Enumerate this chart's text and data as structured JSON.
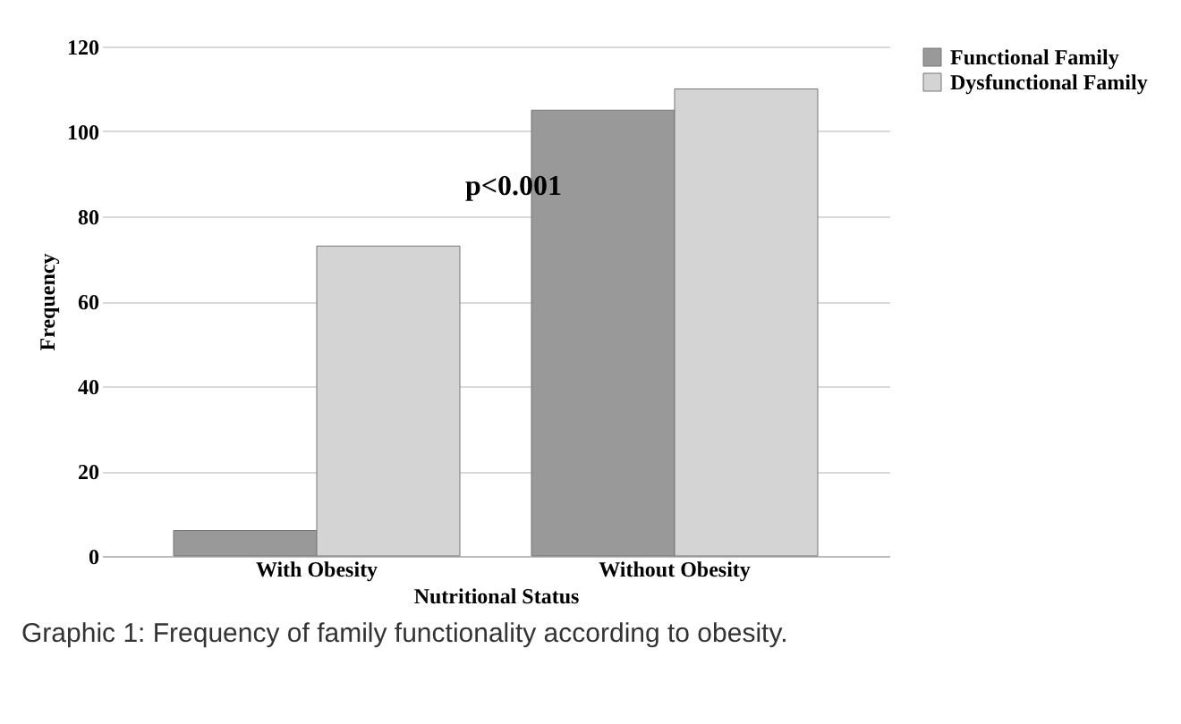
{
  "chart_data": {
    "type": "bar",
    "xlabel": "Nutritional Status",
    "ylabel": "Frequency",
    "categories": [
      "With Obesity",
      "Without Obesity"
    ],
    "series": [
      {
        "name": "Functional Family",
        "color": "#999999",
        "values": [
          6,
          105
        ]
      },
      {
        "name": "Dysfunctional Family",
        "color": "#d4d4d4",
        "values": [
          73,
          110
        ]
      }
    ],
    "ylim": [
      0,
      120
    ],
    "yticks": [
      0,
      20,
      40,
      60,
      80,
      100,
      120
    ],
    "grid": "y",
    "legend": "right",
    "annotations": [
      "p<0.001",
      "Graphic 1: Frequency of family functionality according to obesity."
    ]
  }
}
